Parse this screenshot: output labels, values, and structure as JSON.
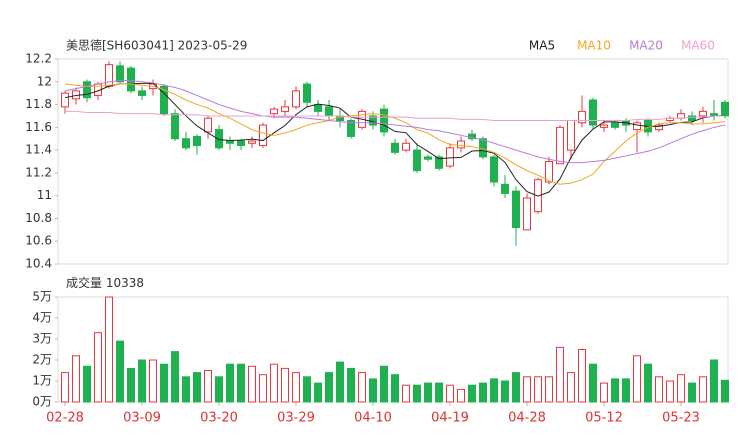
{
  "chart_data": [
    {
      "type": "candlestick",
      "title": "美思德[SH603041] 2023-05-29",
      "categories": [
        "02-28",
        null,
        null,
        null,
        null,
        null,
        null,
        "03-09",
        null,
        null,
        null,
        null,
        null,
        null,
        "03-20",
        null,
        null,
        null,
        null,
        null,
        null,
        "03-29",
        null,
        null,
        null,
        null,
        null,
        null,
        "04-10",
        null,
        null,
        null,
        null,
        null,
        null,
        "04-19",
        null,
        null,
        null,
        null,
        null,
        null,
        "04-28",
        null,
        null,
        null,
        null,
        null,
        null,
        "05-12",
        null,
        null,
        null,
        null,
        null,
        null,
        "05-23",
        null,
        null,
        null,
        null
      ],
      "open": [
        11.78,
        11.85,
        12.0,
        11.88,
        11.96,
        12.14,
        12.12,
        11.92,
        11.94,
        11.96,
        11.72,
        11.5,
        11.52,
        11.56,
        11.58,
        11.48,
        11.48,
        11.46,
        11.44,
        11.72,
        11.74,
        11.78,
        11.98,
        11.8,
        11.78,
        11.7,
        11.66,
        11.6,
        11.7,
        11.76,
        11.46,
        11.4,
        11.4,
        11.34,
        11.34,
        11.26,
        11.42,
        11.54,
        11.5,
        11.34,
        11.1,
        11.04,
        10.7,
        10.86,
        11.12,
        11.28,
        11.4,
        11.64,
        11.84,
        11.6,
        11.64,
        11.66,
        11.58,
        11.66,
        11.58,
        11.66,
        11.68,
        11.7,
        11.7,
        11.72,
        11.82
      ],
      "high": [
        11.92,
        11.95,
        12.02,
        12.0,
        12.18,
        12.18,
        12.14,
        11.96,
        12.02,
        11.98,
        11.76,
        11.56,
        11.54,
        11.7,
        11.62,
        11.52,
        11.5,
        11.52,
        11.64,
        11.78,
        11.84,
        11.96,
        12.0,
        11.84,
        11.84,
        11.76,
        11.68,
        11.76,
        11.74,
        11.8,
        11.5,
        11.5,
        11.46,
        11.36,
        11.36,
        11.46,
        11.52,
        11.58,
        11.52,
        11.36,
        11.18,
        11.08,
        11.02,
        11.16,
        11.34,
        11.62,
        11.66,
        11.88,
        11.86,
        11.66,
        11.66,
        11.68,
        11.66,
        11.68,
        11.64,
        11.7,
        11.76,
        11.74,
        11.78,
        11.84,
        11.84
      ],
      "low": [
        11.72,
        11.8,
        11.82,
        11.84,
        11.94,
        11.98,
        11.9,
        11.84,
        11.88,
        11.7,
        11.48,
        11.4,
        11.36,
        11.5,
        11.4,
        11.4,
        11.4,
        11.42,
        11.42,
        11.68,
        11.7,
        11.76,
        11.78,
        11.7,
        11.66,
        11.6,
        11.5,
        11.58,
        11.58,
        11.52,
        11.36,
        11.38,
        11.2,
        11.3,
        11.22,
        11.24,
        11.38,
        11.48,
        11.32,
        11.08,
        10.98,
        10.56,
        10.7,
        10.84,
        11.1,
        11.28,
        11.32,
        11.6,
        11.58,
        11.56,
        11.58,
        11.56,
        11.38,
        11.52,
        11.56,
        11.64,
        11.66,
        11.62,
        11.64,
        11.66,
        11.68
      ],
      "close": [
        11.9,
        11.92,
        11.86,
        11.98,
        12.15,
        12.0,
        11.92,
        11.88,
        11.98,
        11.72,
        11.5,
        11.42,
        11.44,
        11.68,
        11.42,
        11.46,
        11.44,
        11.48,
        11.62,
        11.76,
        11.78,
        11.92,
        11.82,
        11.74,
        11.7,
        11.66,
        11.52,
        11.74,
        11.62,
        11.56,
        11.38,
        11.46,
        11.22,
        11.32,
        11.24,
        11.42,
        11.48,
        11.5,
        11.34,
        11.12,
        11.02,
        10.72,
        10.98,
        11.14,
        11.3,
        11.6,
        11.66,
        11.74,
        11.62,
        11.62,
        11.6,
        11.62,
        11.64,
        11.56,
        11.62,
        11.68,
        11.72,
        11.66,
        11.74,
        11.7,
        11.7
      ],
      "up_color": "#e8383d",
      "down_color": "#1fb14f",
      "series": [
        {
          "name": "MA5",
          "color": "#222222",
          "values": [
            11.86,
            11.88,
            11.89,
            11.92,
            11.962,
            11.982,
            11.982,
            11.986,
            11.986,
            11.9,
            11.8,
            11.7,
            11.612,
            11.552,
            11.492,
            11.484,
            11.488,
            11.496,
            11.484,
            11.552,
            11.616,
            11.712,
            11.78,
            11.804,
            11.792,
            11.768,
            11.688,
            11.672,
            11.648,
            11.62,
            11.564,
            11.552,
            11.448,
            11.388,
            11.324,
            11.332,
            11.336,
            11.392,
            11.396,
            11.372,
            11.292,
            11.14,
            11.036,
            10.996,
            11.032,
            11.148,
            11.336,
            11.488,
            11.584,
            11.648,
            11.648,
            11.64,
            11.62,
            11.608,
            11.608,
            11.624,
            11.644,
            11.648,
            11.684,
            11.7,
            11.704
          ]
        },
        {
          "name": "MA10",
          "color": "#f5a623",
          "values": [
            11.98,
            11.97,
            11.96,
            11.96,
            11.97,
            11.98,
            11.98,
            11.97,
            11.96,
            11.93,
            11.89,
            11.84,
            11.8,
            11.77,
            11.72,
            11.68,
            11.63,
            11.58,
            11.55,
            11.53,
            11.55,
            11.58,
            11.62,
            11.64,
            11.66,
            11.69,
            11.7,
            11.71,
            11.72,
            11.71,
            11.68,
            11.64,
            11.58,
            11.55,
            11.49,
            11.45,
            11.44,
            11.43,
            11.41,
            11.38,
            11.33,
            11.27,
            11.22,
            11.18,
            11.13,
            11.1,
            11.11,
            11.14,
            11.19,
            11.3,
            11.39,
            11.48,
            11.55,
            11.6,
            11.63,
            11.64,
            11.64,
            11.63,
            11.63,
            11.64,
            11.65
          ]
        },
        {
          "name": "MA20",
          "color": "#b77ce0",
          "values": [
            11.92,
            11.94,
            11.96,
            11.98,
            12.0,
            12.01,
            12.01,
            12.0,
            11.99,
            11.97,
            11.95,
            11.92,
            11.88,
            11.84,
            11.8,
            11.77,
            11.74,
            11.72,
            11.7,
            11.69,
            11.69,
            11.69,
            11.68,
            11.67,
            11.66,
            11.65,
            11.64,
            11.64,
            11.64,
            11.63,
            11.62,
            11.61,
            11.6,
            11.58,
            11.57,
            11.55,
            11.53,
            11.51,
            11.49,
            11.46,
            11.43,
            11.4,
            11.37,
            11.34,
            11.32,
            11.3,
            11.29,
            11.29,
            11.3,
            11.31,
            11.33,
            11.35,
            11.37,
            11.39,
            11.42,
            11.46,
            11.5,
            11.54,
            11.57,
            11.6,
            11.62
          ]
        },
        {
          "name": "MA60",
          "color": "#f0a0d0",
          "values": [
            11.74,
            11.74,
            11.73,
            11.73,
            11.73,
            11.72,
            11.72,
            11.72,
            11.72,
            11.71,
            11.71,
            11.71,
            11.71,
            11.7,
            11.7,
            11.7,
            11.7,
            11.7,
            11.7,
            11.7,
            11.7,
            11.7,
            11.7,
            11.7,
            11.7,
            11.7,
            11.69,
            11.69,
            11.69,
            11.69,
            11.69,
            11.69,
            11.68,
            11.68,
            11.68,
            11.68,
            11.67,
            11.67,
            11.67,
            11.66,
            11.66,
            11.66,
            11.66,
            11.66,
            11.66,
            11.66,
            11.66,
            11.66,
            11.66,
            11.66,
            11.66,
            11.66,
            11.67,
            11.67,
            11.67,
            11.68,
            11.68,
            11.69,
            11.69,
            11.7,
            11.7
          ]
        }
      ],
      "ylim": [
        10.4,
        12.2
      ],
      "yticks": [
        12.2,
        12,
        11.8,
        11.6,
        11.4,
        11.2,
        11,
        10.8,
        10.6,
        10.4
      ]
    },
    {
      "type": "bar",
      "title": "成交量",
      "values": [
        14000,
        22000,
        17000,
        33000,
        50000,
        29000,
        16000,
        20000,
        20000,
        18000,
        24000,
        12000,
        14000,
        15000,
        12000,
        18000,
        18000,
        17000,
        13000,
        18000,
        16000,
        14000,
        12000,
        9000,
        14000,
        19000,
        16000,
        14000,
        11000,
        17000,
        13000,
        8000,
        8000,
        9000,
        9000,
        8000,
        6000,
        8000,
        9000,
        11000,
        10000,
        14000,
        12000,
        12000,
        12000,
        26000,
        14000,
        25000,
        18000,
        9000,
        11000,
        11000,
        22000,
        18000,
        12000,
        10000,
        13000,
        9000,
        12000,
        20000,
        10338
      ],
      "ylim": [
        0,
        50000
      ],
      "yticks": [
        {
          "value": 50000,
          "label": "5万"
        },
        {
          "value": 40000,
          "label": "4万"
        },
        {
          "value": 30000,
          "label": "3万"
        },
        {
          "value": 20000,
          "label": "2万"
        },
        {
          "value": 10000,
          "label": "1万"
        },
        {
          "value": 0,
          "label": "0万"
        }
      ]
    }
  ]
}
